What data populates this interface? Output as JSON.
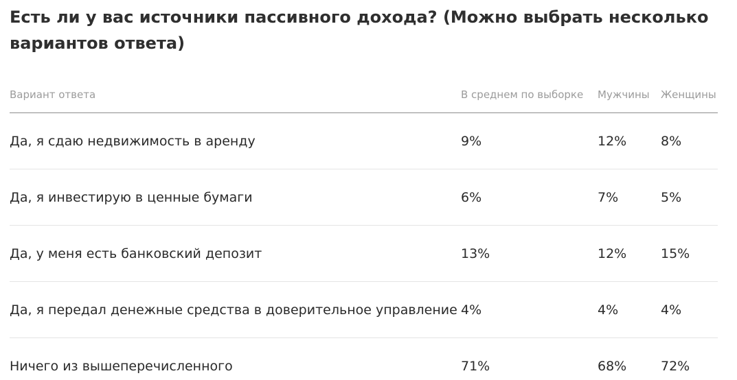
{
  "chart_data": {
    "type": "table",
    "title": "Есть ли у вас источники пассивного дохода? (Можно выбрать несколько вариантов ответа)",
    "columns": [
      "Вариант ответа",
      "В среднем по выборке",
      "Мужчины",
      "Женщины"
    ],
    "rows": [
      [
        "Да, я сдаю недвижимость в аренду",
        "9%",
        "12%",
        "8%"
      ],
      [
        "Да, я инвестирую в ценные бумаги",
        "6%",
        "7%",
        "5%"
      ],
      [
        "Да, у меня есть банковский депозит",
        "13%",
        "12%",
        "15%"
      ],
      [
        "Да, я передал денежные средства в доверительное управление",
        "4%",
        "4%",
        "4%"
      ],
      [
        "Ничего из вышеперечисленного",
        "71%",
        "68%",
        "72%"
      ]
    ]
  }
}
